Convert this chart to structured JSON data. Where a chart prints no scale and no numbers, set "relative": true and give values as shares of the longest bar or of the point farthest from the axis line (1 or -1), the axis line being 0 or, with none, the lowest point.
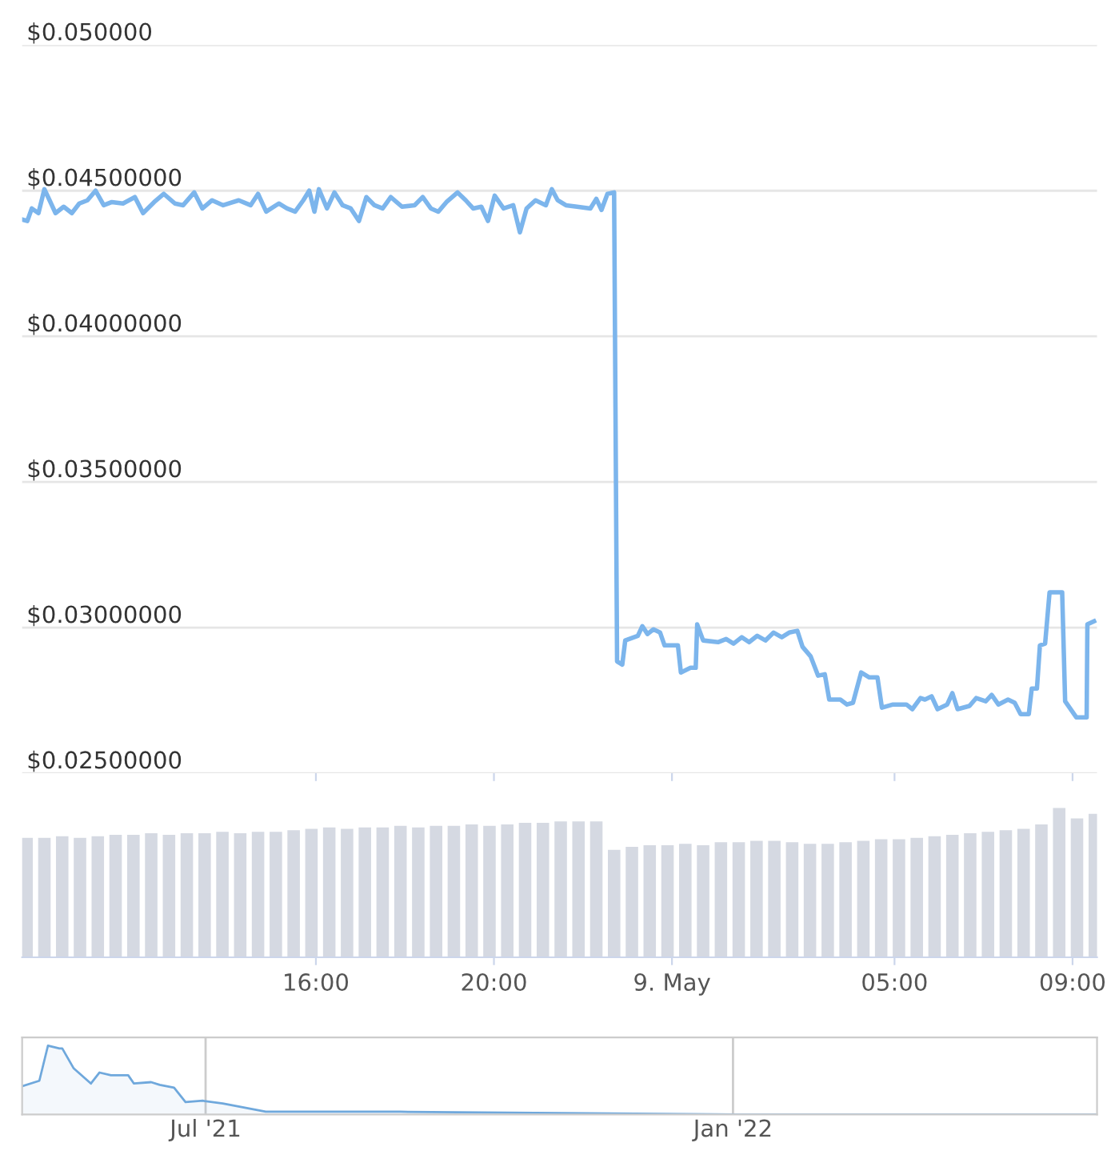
{
  "chart_data": [
    {
      "type": "line",
      "tick_labels": "y",
      "grid": "y",
      "legend": false,
      "marker": "none",
      "line_style": "solid",
      "xlim": [
        "2022-05-08T09:24",
        "2022-05-09T09:33"
      ],
      "xticks": [
        {
          "value": "2022-05-08T16:00",
          "label": null
        },
        {
          "value": "2022-05-08T20:00",
          "label": null
        },
        {
          "value": "2022-05-09T00:00",
          "label": null
        },
        {
          "value": "2022-05-09T05:00",
          "label": null
        },
        {
          "value": "2022-05-09T09:00",
          "label": null
        }
      ],
      "ylim": [
        0.025,
        0.05
      ],
      "yticks": [
        {
          "value": 0.025,
          "label": "$0.02500000"
        },
        {
          "value": 0.03,
          "label": "$0.03000000"
        },
        {
          "value": 0.035,
          "label": "$0.03500000"
        },
        {
          "value": 0.04,
          "label": "$0.04000000"
        },
        {
          "value": 0.045,
          "label": "$0.04500000"
        },
        {
          "value": 0.05,
          "label": "$0.050000"
        }
      ],
      "series": [
        {
          "color": "#7cb5ec",
          "x": [
            "2022-05-08T09:24",
            "2022-05-08T09:31",
            "2022-05-08T09:37",
            "2022-05-08T09:46",
            "2022-05-08T09:54",
            "2022-05-08T10:01",
            "2022-05-08T10:09",
            "2022-05-08T10:20",
            "2022-05-08T10:31",
            "2022-05-08T10:41",
            "2022-05-08T10:52",
            "2022-05-08T11:03",
            "2022-05-08T11:14",
            "2022-05-08T11:25",
            "2022-05-08T11:40",
            "2022-05-08T11:56",
            "2022-05-08T12:07",
            "2022-05-08T12:22",
            "2022-05-08T12:35",
            "2022-05-08T12:50",
            "2022-05-08T13:01",
            "2022-05-08T13:16",
            "2022-05-08T13:27",
            "2022-05-08T13:40",
            "2022-05-08T13:55",
            "2022-05-08T14:16",
            "2022-05-08T14:32",
            "2022-05-08T14:42",
            "2022-05-08T14:53",
            "2022-05-08T15:10",
            "2022-05-08T15:21",
            "2022-05-08T15:32",
            "2022-05-08T15:43",
            "2022-05-08T15:51",
            "2022-05-08T15:58",
            "2022-05-08T16:04",
            "2022-05-08T16:15",
            "2022-05-08T16:25",
            "2022-05-08T16:36",
            "2022-05-08T16:47",
            "2022-05-08T16:58",
            "2022-05-08T17:08",
            "2022-05-08T17:19",
            "2022-05-08T17:30",
            "2022-05-08T17:41",
            "2022-05-08T17:56",
            "2022-05-08T18:13",
            "2022-05-08T18:24",
            "2022-05-08T18:35",
            "2022-05-08T18:45",
            "2022-05-08T18:56",
            "2022-05-08T19:11",
            "2022-05-08T19:22",
            "2022-05-08T19:32",
            "2022-05-08T19:43",
            "2022-05-08T19:52",
            "2022-05-08T20:01",
            "2022-05-08T20:13",
            "2022-05-08T20:26",
            "2022-05-08T20:35",
            "2022-05-08T20:44",
            "2022-05-08T20:56",
            "2022-05-08T21:10",
            "2022-05-08T21:18",
            "2022-05-08T21:26",
            "2022-05-08T21:37",
            "2022-05-08T21:52",
            "2022-05-08T22:10",
            "2022-05-08T22:18",
            "2022-05-08T22:25",
            "2022-05-08T22:33",
            "2022-05-08T22:42",
            "2022-05-08T22:46",
            "2022-05-08T22:53",
            "2022-05-08T22:57",
            "2022-05-08T23:14",
            "2022-05-08T23:20",
            "2022-05-08T23:27",
            "2022-05-08T23:35",
            "2022-05-08T23:44",
            "2022-05-08T23:50",
            "2022-05-09T00:08",
            "2022-05-09T00:12",
            "2022-05-09T00:25",
            "2022-05-09T00:32",
            "2022-05-09T00:34",
            "2022-05-09T00:42",
            "2022-05-09T01:02",
            "2022-05-09T01:13",
            "2022-05-09T01:23",
            "2022-05-09T01:34",
            "2022-05-09T01:44",
            "2022-05-09T01:55",
            "2022-05-09T02:06",
            "2022-05-09T02:17",
            "2022-05-09T02:28",
            "2022-05-09T02:38",
            "2022-05-09T02:49",
            "2022-05-09T02:56",
            "2022-05-09T03:07",
            "2022-05-09T03:17",
            "2022-05-09T03:26",
            "2022-05-09T03:32",
            "2022-05-09T03:47",
            "2022-05-09T03:56",
            "2022-05-09T04:04",
            "2022-05-09T04:15",
            "2022-05-09T04:26",
            "2022-05-09T04:37",
            "2022-05-09T04:43",
            "2022-05-09T04:58",
            "2022-05-09T05:16",
            "2022-05-09T05:24",
            "2022-05-09T05:35",
            "2022-05-09T05:41",
            "2022-05-09T05:50",
            "2022-05-09T05:58",
            "2022-05-09T06:11",
            "2022-05-09T06:18",
            "2022-05-09T06:25",
            "2022-05-09T06:41",
            "2022-05-09T06:50",
            "2022-05-09T07:03",
            "2022-05-09T07:11",
            "2022-05-09T07:20",
            "2022-05-09T07:33",
            "2022-05-09T07:42",
            "2022-05-09T07:50",
            "2022-05-09T08:01",
            "2022-05-09T08:05",
            "2022-05-09T08:12",
            "2022-05-09T08:16",
            "2022-05-09T08:23",
            "2022-05-09T08:29",
            "2022-05-09T08:46",
            "2022-05-09T08:50",
            "2022-05-09T09:05",
            "2022-05-09T09:19",
            "2022-05-09T09:20",
            "2022-05-09T09:29"
          ],
          "values": [
            0.04401,
            0.04396,
            0.04439,
            0.04423,
            0.04505,
            0.04467,
            0.04423,
            0.04445,
            0.04423,
            0.04456,
            0.04467,
            0.045,
            0.0445,
            0.04461,
            0.04456,
            0.04478,
            0.04423,
            0.04461,
            0.04489,
            0.04456,
            0.0445,
            0.04494,
            0.04439,
            0.04467,
            0.0445,
            0.04467,
            0.0445,
            0.04489,
            0.04428,
            0.04456,
            0.04439,
            0.04428,
            0.04467,
            0.045,
            0.04428,
            0.04505,
            0.04439,
            0.04494,
            0.0445,
            0.04439,
            0.04396,
            0.04478,
            0.0445,
            0.04439,
            0.04478,
            0.04445,
            0.0445,
            0.04478,
            0.04439,
            0.04428,
            0.04461,
            0.04494,
            0.04467,
            0.04439,
            0.04445,
            0.04396,
            0.04483,
            0.04439,
            0.0445,
            0.04357,
            0.04439,
            0.04467,
            0.0445,
            0.04505,
            0.04467,
            0.0445,
            0.04445,
            0.04439,
            0.04472,
            0.04434,
            0.04489,
            0.04494,
            0.02884,
            0.02873,
            0.02956,
            0.02972,
            0.03005,
            0.02978,
            0.02994,
            0.02983,
            0.02939,
            0.02939,
            0.02846,
            0.02862,
            0.02862,
            0.03011,
            0.02956,
            0.0295,
            0.02961,
            0.02945,
            0.02967,
            0.0295,
            0.02972,
            0.02956,
            0.02983,
            0.02967,
            0.02983,
            0.02989,
            0.02934,
            0.02901,
            0.02835,
            0.0284,
            0.02753,
            0.02753,
            0.02736,
            0.02742,
            0.02846,
            0.02829,
            0.02829,
            0.02725,
            0.02736,
            0.02736,
            0.0272,
            0.02758,
            0.02753,
            0.02764,
            0.0272,
            0.02736,
            0.02775,
            0.0272,
            0.02731,
            0.02758,
            0.02747,
            0.02769,
            0.02736,
            0.02753,
            0.02742,
            0.02703,
            0.02703,
            0.02791,
            0.02791,
            0.02939,
            0.02945,
            0.03121,
            0.03121,
            0.02747,
            0.02692,
            0.02692,
            0.03011,
            0.03022
          ]
        }
      ]
    },
    {
      "type": "bar",
      "relative": true,
      "color": "#d5d9e2",
      "xlim": [
        "2022-05-08T09:24",
        "2022-05-09T09:33"
      ],
      "xticks": [
        {
          "value": "2022-05-08T16:00",
          "label": "16:00"
        },
        {
          "value": "2022-05-08T20:00",
          "label": "20:00"
        },
        {
          "value": "2022-05-09T00:00",
          "label": "9. May"
        },
        {
          "value": "2022-05-09T05:00",
          "label": "05:00"
        },
        {
          "value": "2022-05-09T09:00",
          "label": "09:00"
        }
      ],
      "x": [
        "2022-05-08T09:30",
        "2022-05-08T09:54",
        "2022-05-08T10:18",
        "2022-05-08T10:42",
        "2022-05-08T11:06",
        "2022-05-08T11:30",
        "2022-05-08T11:54",
        "2022-05-08T12:18",
        "2022-05-08T12:42",
        "2022-05-08T13:06",
        "2022-05-08T13:30",
        "2022-05-08T13:54",
        "2022-05-08T14:18",
        "2022-05-08T14:42",
        "2022-05-08T15:06",
        "2022-05-08T15:30",
        "2022-05-08T15:54",
        "2022-05-08T16:18",
        "2022-05-08T16:42",
        "2022-05-08T17:06",
        "2022-05-08T17:30",
        "2022-05-08T17:54",
        "2022-05-08T18:18",
        "2022-05-08T18:42",
        "2022-05-08T19:06",
        "2022-05-08T19:30",
        "2022-05-08T19:54",
        "2022-05-08T20:18",
        "2022-05-08T20:42",
        "2022-05-08T21:06",
        "2022-05-08T21:30",
        "2022-05-08T21:54",
        "2022-05-08T22:18",
        "2022-05-08T22:42",
        "2022-05-08T23:06",
        "2022-05-08T23:30",
        "2022-05-08T23:54",
        "2022-05-09T00:18",
        "2022-05-09T00:42",
        "2022-05-09T01:06",
        "2022-05-09T01:30",
        "2022-05-09T01:54",
        "2022-05-09T02:18",
        "2022-05-09T02:42",
        "2022-05-09T03:06",
        "2022-05-09T03:30",
        "2022-05-09T03:54",
        "2022-05-09T04:18",
        "2022-05-09T04:42",
        "2022-05-09T05:06",
        "2022-05-09T05:30",
        "2022-05-09T05:54",
        "2022-05-09T06:18",
        "2022-05-09T06:42",
        "2022-05-09T07:06",
        "2022-05-09T07:30",
        "2022-05-09T07:54",
        "2022-05-09T08:18",
        "2022-05-09T08:42",
        "2022-05-09T09:06",
        "2022-05-09T09:30"
      ],
      "values": [
        0.8,
        0.8,
        0.81,
        0.8,
        0.81,
        0.82,
        0.82,
        0.83,
        0.82,
        0.83,
        0.83,
        0.84,
        0.83,
        0.84,
        0.84,
        0.85,
        0.86,
        0.87,
        0.86,
        0.87,
        0.87,
        0.88,
        0.87,
        0.88,
        0.88,
        0.89,
        0.88,
        0.89,
        0.9,
        0.9,
        0.91,
        0.91,
        0.91,
        0.72,
        0.74,
        0.75,
        0.75,
        0.76,
        0.75,
        0.77,
        0.77,
        0.78,
        0.78,
        0.77,
        0.76,
        0.76,
        0.77,
        0.78,
        0.79,
        0.79,
        0.8,
        0.81,
        0.82,
        0.83,
        0.84,
        0.85,
        0.86,
        0.89,
        1.0,
        0.93,
        0.96
      ]
    },
    {
      "type": "area",
      "relative": true,
      "grid": "x",
      "color": "#6fa8dc",
      "xlim": [
        "2021-04-28",
        "2022-05-08"
      ],
      "xticks": [
        {
          "value": "2021-07-01",
          "label": "Jul '21"
        },
        {
          "value": "2022-01-01",
          "label": "Jan '22"
        }
      ],
      "x": [
        "2021-04-28",
        "2021-05-04",
        "2021-05-07",
        "2021-05-11",
        "2021-05-12",
        "2021-05-16",
        "2021-05-22",
        "2021-05-25",
        "2021-05-29",
        "2021-06-04",
        "2021-06-06",
        "2021-06-12",
        "2021-06-15",
        "2021-06-20",
        "2021-06-24",
        "2021-06-30",
        "2021-07-07",
        "2021-07-22",
        "2021-09-07",
        "2021-11-02",
        "2022-01-02",
        "2022-05-08"
      ],
      "values": [
        0.41,
        0.49,
        1.0,
        0.96,
        0.96,
        0.67,
        0.45,
        0.61,
        0.57,
        0.57,
        0.45,
        0.47,
        0.43,
        0.39,
        0.18,
        0.2,
        0.16,
        0.04,
        0.04,
        0.02,
        0,
        0
      ]
    }
  ]
}
